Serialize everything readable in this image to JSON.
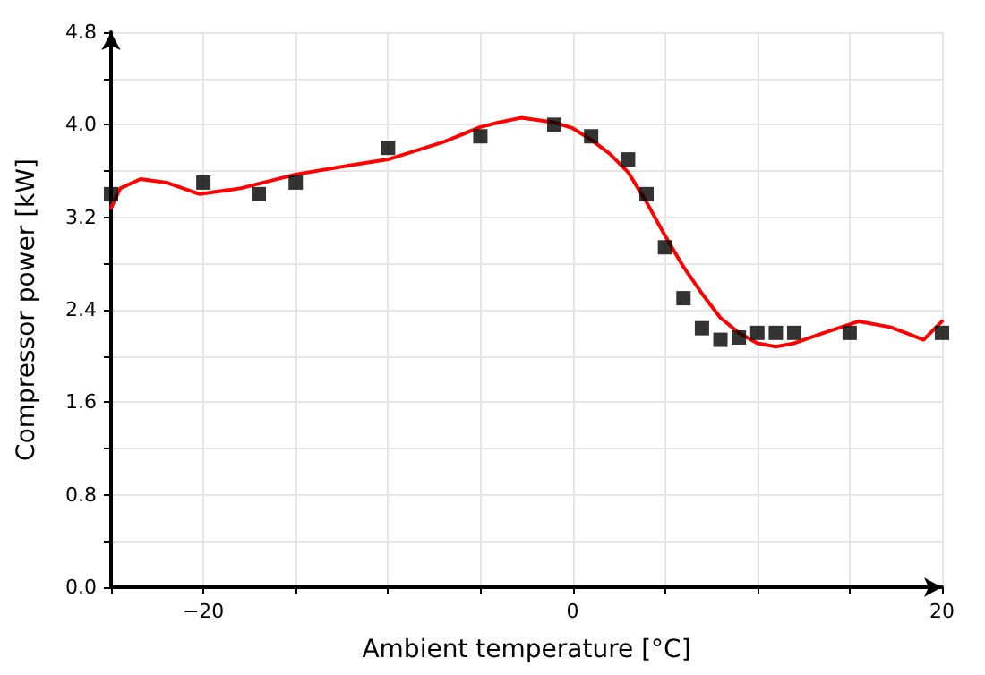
{
  "chart_data": {
    "type": "scatter",
    "xlabel": "Ambient temperature [°C]",
    "ylabel": "Compressor power [kW]",
    "xlim": [
      -25,
      20
    ],
    "ylim": [
      0,
      4.8
    ],
    "xticks": [
      {
        "value": -25,
        "label": null
      },
      {
        "value": -20,
        "label": "−20"
      },
      {
        "value": -15,
        "label": null
      },
      {
        "value": -10,
        "label": null
      },
      {
        "value": -5,
        "label": null
      },
      0,
      {
        "value": 5,
        "label": null
      },
      {
        "value": 10,
        "label": null
      },
      {
        "value": 15,
        "label": null
      },
      20
    ],
    "yticks": [
      {
        "value": 0,
        "label": "0.0"
      },
      {
        "value": 0.4,
        "label": null
      },
      0.8,
      {
        "value": 1.2,
        "label": null
      },
      1.6,
      {
        "value": 2,
        "label": null
      },
      2.4,
      {
        "value": 2.8,
        "label": null
      },
      3.2,
      {
        "value": 3.6,
        "label": null
      },
      {
        "value": 4,
        "label": "4.0"
      },
      {
        "value": 4.4,
        "label": null
      },
      4.8
    ],
    "grid": true,
    "series": [
      {
        "color": "#000000",
        "marker": "square",
        "x": [
          -25,
          -20,
          -17,
          -15,
          -10,
          -5,
          -1,
          1,
          3,
          4,
          5,
          6,
          7,
          8,
          9,
          10,
          11,
          12,
          15,
          20
        ],
        "values": [
          3.4,
          3.5,
          3.4,
          3.5,
          3.8,
          3.9,
          4.0,
          3.9,
          3.7,
          3.4,
          2.94,
          2.5,
          2.24,
          2.14,
          2.16,
          2.2,
          2.2,
          2.2,
          2.2,
          2.2
        ]
      },
      {
        "type": "line",
        "color": "#ff0000",
        "marker": "none",
        "line_style": "solid",
        "x": [
          -25,
          -24.5,
          -23.4,
          -22,
          -20.2,
          -18,
          -15,
          -12,
          -10,
          -7,
          -5,
          -4,
          -2.8,
          -1,
          0,
          1,
          2,
          3,
          4,
          5,
          6,
          7,
          8,
          9,
          10,
          11,
          12,
          13.6,
          15.5,
          17.2,
          19,
          20
        ],
        "values": [
          3.28,
          3.45,
          3.53,
          3.5,
          3.4,
          3.45,
          3.57,
          3.65,
          3.7,
          3.85,
          3.98,
          4.02,
          4.06,
          4.02,
          3.97,
          3.87,
          3.75,
          3.59,
          3.33,
          3.04,
          2.77,
          2.54,
          2.33,
          2.2,
          2.11,
          2.08,
          2.11,
          2.2,
          2.3,
          2.25,
          2.14,
          2.3
        ]
      }
    ]
  }
}
